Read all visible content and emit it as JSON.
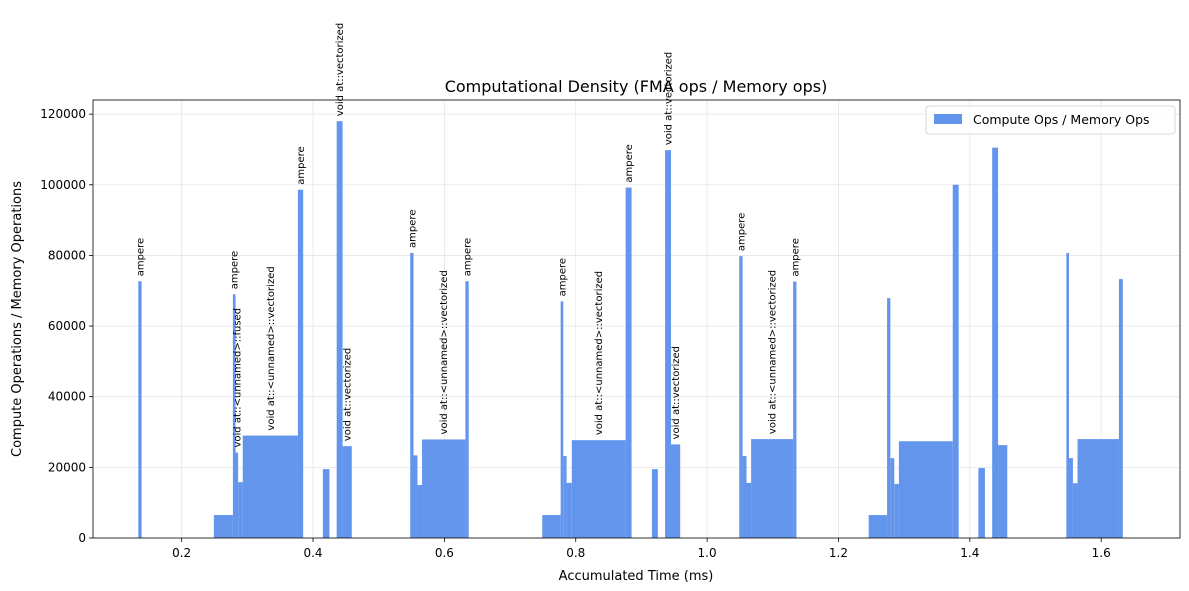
{
  "chart_data": {
    "type": "bar",
    "title": "Computational Density (FMA ops / Memory ops)",
    "xlabel": "Accumulated Time (ms)",
    "ylabel": "Compute Operations / Memory Operations",
    "xlim": [
      0.065,
      1.72
    ],
    "ylim": [
      0,
      124000
    ],
    "xticks": [
      0.2,
      0.4,
      0.6,
      0.8,
      1.0,
      1.2,
      1.4,
      1.6
    ],
    "xtick_labels": [
      "0.2",
      "0.4",
      "0.6",
      "0.8",
      "1.0",
      "1.2",
      "1.4",
      "1.6"
    ],
    "yticks": [
      0,
      20000,
      40000,
      60000,
      80000,
      100000,
      120000
    ],
    "ytick_labels": [
      "0",
      "20000",
      "40000",
      "60000",
      "80000",
      "100000",
      "120000"
    ],
    "grid": true,
    "legend": {
      "position": "top-right",
      "entries": [
        "Compute Ops / Memory Ops"
      ]
    },
    "color": "#6495ed",
    "bars": [
      {
        "x0": 0.134,
        "x1": 0.139,
        "value": 72700,
        "label": "ampere"
      },
      {
        "x0": 0.249,
        "x1": 0.278,
        "value": 6500,
        "label": ""
      },
      {
        "x0": 0.278,
        "x1": 0.282,
        "value": 69000,
        "label": "ampere"
      },
      {
        "x0": 0.282,
        "x1": 0.286,
        "value": 24200,
        "label": "void at::<unnamed>::fused"
      },
      {
        "x0": 0.286,
        "x1": 0.293,
        "value": 15800,
        "label": ""
      },
      {
        "x0": 0.293,
        "x1": 0.377,
        "value": 29000,
        "label": "void at::<unnamed>::vectorized"
      },
      {
        "x0": 0.377,
        "x1": 0.385,
        "value": 98600,
        "label": "ampere"
      },
      {
        "x0": 0.415,
        "x1": 0.425,
        "value": 19500,
        "label": ""
      },
      {
        "x0": 0.436,
        "x1": 0.445,
        "value": 118000,
        "label": "void at::vectorized"
      },
      {
        "x0": 0.445,
        "x1": 0.459,
        "value": 26000,
        "label": "void at::vectorized"
      },
      {
        "x0": 0.548,
        "x1": 0.553,
        "value": 80700,
        "label": "ampere"
      },
      {
        "x0": 0.553,
        "x1": 0.559,
        "value": 23400,
        "label": ""
      },
      {
        "x0": 0.559,
        "x1": 0.566,
        "value": 15000,
        "label": ""
      },
      {
        "x0": 0.566,
        "x1": 0.632,
        "value": 27900,
        "label": "void at::<unnamed>::vectorized"
      },
      {
        "x0": 0.632,
        "x1": 0.637,
        "value": 72700,
        "label": "ampere"
      },
      {
        "x0": 0.749,
        "x1": 0.777,
        "value": 6500,
        "label": ""
      },
      {
        "x0": 0.777,
        "x1": 0.781,
        "value": 67000,
        "label": "ampere"
      },
      {
        "x0": 0.781,
        "x1": 0.786,
        "value": 23200,
        "label": ""
      },
      {
        "x0": 0.786,
        "x1": 0.794,
        "value": 15600,
        "label": ""
      },
      {
        "x0": 0.794,
        "x1": 0.876,
        "value": 27700,
        "label": "void at::<unnamed>::vectorized"
      },
      {
        "x0": 0.876,
        "x1": 0.885,
        "value": 99200,
        "label": "ampere"
      },
      {
        "x0": 0.916,
        "x1": 0.925,
        "value": 19500,
        "label": ""
      },
      {
        "x0": 0.936,
        "x1": 0.945,
        "value": 109800,
        "label": "void at::vectorized"
      },
      {
        "x0": 0.945,
        "x1": 0.959,
        "value": 26500,
        "label": "void at::vectorized"
      },
      {
        "x0": 1.049,
        "x1": 1.054,
        "value": 79800,
        "label": "ampere"
      },
      {
        "x0": 1.054,
        "x1": 1.06,
        "value": 23200,
        "label": ""
      },
      {
        "x0": 1.06,
        "x1": 1.067,
        "value": 15600,
        "label": ""
      },
      {
        "x0": 1.067,
        "x1": 1.131,
        "value": 28000,
        "label": "void at::<unnamed>::vectorized"
      },
      {
        "x0": 1.131,
        "x1": 1.136,
        "value": 72600,
        "label": "ampere"
      },
      {
        "x0": 1.246,
        "x1": 1.274,
        "value": 6500,
        "label": ""
      },
      {
        "x0": 1.274,
        "x1": 1.279,
        "value": 67900,
        "label": ""
      },
      {
        "x0": 1.279,
        "x1": 1.285,
        "value": 22600,
        "label": ""
      },
      {
        "x0": 1.285,
        "x1": 1.292,
        "value": 15300,
        "label": ""
      },
      {
        "x0": 1.292,
        "x1": 1.374,
        "value": 27400,
        "label": ""
      },
      {
        "x0": 1.374,
        "x1": 1.383,
        "value": 100000,
        "label": ""
      },
      {
        "x0": 1.413,
        "x1": 1.423,
        "value": 19800,
        "label": ""
      },
      {
        "x0": 1.434,
        "x1": 1.443,
        "value": 110500,
        "label": ""
      },
      {
        "x0": 1.443,
        "x1": 1.457,
        "value": 26300,
        "label": ""
      },
      {
        "x0": 1.547,
        "x1": 1.551,
        "value": 80700,
        "label": ""
      },
      {
        "x0": 1.551,
        "x1": 1.557,
        "value": 22600,
        "label": ""
      },
      {
        "x0": 1.557,
        "x1": 1.564,
        "value": 15500,
        "label": ""
      },
      {
        "x0": 1.564,
        "x1": 1.627,
        "value": 28000,
        "label": ""
      },
      {
        "x0": 1.627,
        "x1": 1.633,
        "value": 73300,
        "label": ""
      }
    ]
  }
}
